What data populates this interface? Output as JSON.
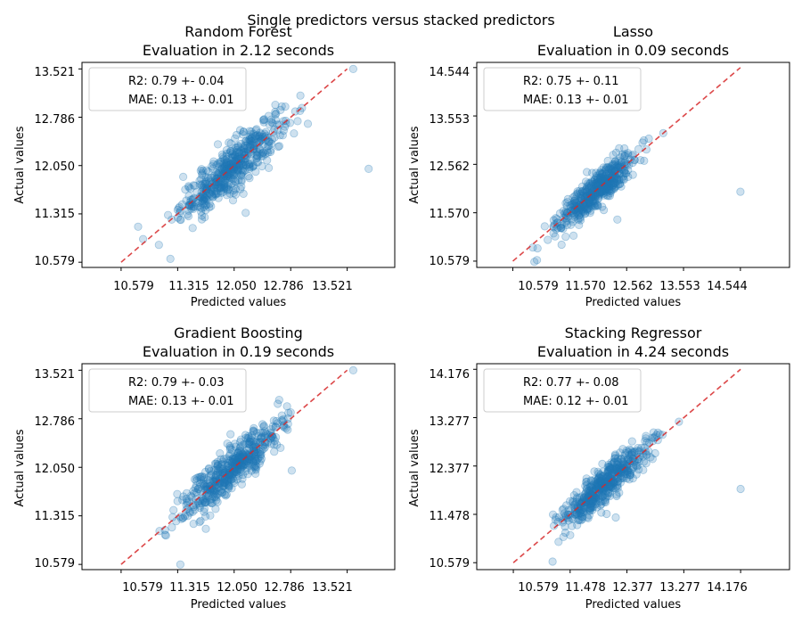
{
  "figure": {
    "suptitle": "Single predictors versus stacked predictors"
  },
  "chart_data": [
    {
      "type": "scatter",
      "title_line1": "Random Forest",
      "title_line2": "Evaluation in 2.12 seconds",
      "xlabel": "Predicted values",
      "ylabel": "Actual values",
      "ticks": [
        10.579,
        11.315,
        12.05,
        12.786,
        13.521
      ],
      "tick_labels": [
        "10.579",
        "11.315",
        "12.050",
        "12.786",
        "13.521"
      ],
      "xlim": [
        10.07,
        14.14
      ],
      "ylim": [
        10.5,
        13.62
      ],
      "legend": [
        "R2: 0.79 +- 0.04",
        "MAE: 0.13 +- 0.01"
      ],
      "legend_loc": "upper left",
      "reference_line": [
        [
          10.579,
          10.579
        ],
        [
          13.521,
          13.521
        ]
      ],
      "point_color": "#1f77b4",
      "line_color": "#d62728",
      "sample": {
        "center": 12.02,
        "xsd": 0.33,
        "noise": 0.18,
        "outliers": [
          [
            13.8,
            12.0
          ],
          [
            11.22,
            10.63
          ],
          [
            11.51,
            11.1
          ],
          [
            12.2,
            11.33
          ],
          [
            13.6,
            13.52
          ],
          [
            10.8,
            11.12
          ]
        ]
      }
    },
    {
      "type": "scatter",
      "title_line1": "Lasso",
      "title_line2": "Evaluation in 0.09 seconds",
      "xlabel": "Predicted values",
      "ylabel": "Actual values",
      "ticks": [
        10.579,
        11.57,
        12.562,
        13.553,
        14.544
      ],
      "tick_labels": [
        "10.579",
        "11.570",
        "12.562",
        "13.553",
        "14.544"
      ],
      "xlim": [
        9.95,
        15.4
      ],
      "ylim": [
        10.45,
        14.65
      ],
      "legend": [
        "R2: 0.75 +- 0.11",
        "MAE: 0.13 +- 0.01"
      ],
      "legend_loc": "upper left",
      "reference_line": [
        [
          10.579,
          10.579
        ],
        [
          14.544,
          14.544
        ]
      ],
      "point_color": "#1f77b4",
      "line_color": "#d62728",
      "sample": {
        "center": 12.02,
        "xsd": 0.33,
        "noise": 0.17,
        "outliers": [
          [
            14.544,
            12.0
          ],
          [
            11.0,
            10.6
          ],
          [
            13.2,
            13.2
          ],
          [
            12.4,
            11.43
          ]
        ]
      }
    },
    {
      "type": "scatter",
      "title_line1": "Gradient Boosting",
      "title_line2": "Evaluation in 0.19 seconds",
      "xlabel": "Predicted values",
      "ylabel": "Actual values",
      "ticks": [
        10.579,
        11.315,
        12.05,
        12.786,
        13.521
      ],
      "tick_labels": [
        "10.579",
        "11.315",
        "12.050",
        "12.786",
        "13.521"
      ],
      "xlim": [
        10.07,
        14.14
      ],
      "ylim": [
        10.5,
        13.62
      ],
      "legend": [
        "R2: 0.79 +- 0.03",
        "MAE: 0.13 +- 0.01"
      ],
      "legend_loc": "upper left",
      "reference_line": [
        [
          10.579,
          10.579
        ],
        [
          13.521,
          13.521
        ]
      ],
      "point_color": "#1f77b4",
      "line_color": "#d62728",
      "sample": {
        "center": 12.02,
        "xsd": 0.33,
        "noise": 0.17,
        "outliers": [
          [
            11.35,
            10.579
          ],
          [
            11.15,
            11.1
          ],
          [
            12.8,
            12.0
          ],
          [
            13.6,
            13.52
          ],
          [
            11.6,
            11.22
          ]
        ]
      }
    },
    {
      "type": "scatter",
      "title_line1": "Stacking Regressor",
      "title_line2": "Evaluation in 4.24 seconds",
      "xlabel": "Predicted values",
      "ylabel": "Actual values",
      "ticks": [
        10.579,
        11.478,
        12.377,
        13.277,
        14.176
      ],
      "tick_labels": [
        "10.579",
        "11.478",
        "12.377",
        "13.277",
        "14.176"
      ],
      "xlim": [
        10.0,
        14.95
      ],
      "ylim": [
        10.45,
        14.28
      ],
      "legend": [
        "R2: 0.77 +- 0.08",
        "MAE: 0.12 +- 0.01"
      ],
      "legend_loc": "upper left",
      "reference_line": [
        [
          10.579,
          10.579
        ],
        [
          14.176,
          14.176
        ]
      ],
      "point_color": "#1f77b4",
      "line_color": "#d62728",
      "sample": {
        "center": 12.02,
        "xsd": 0.33,
        "noise": 0.17,
        "outliers": [
          [
            14.176,
            11.95
          ],
          [
            11.2,
            10.6
          ],
          [
            12.2,
            11.42
          ],
          [
            13.2,
            13.2
          ]
        ]
      }
    }
  ]
}
